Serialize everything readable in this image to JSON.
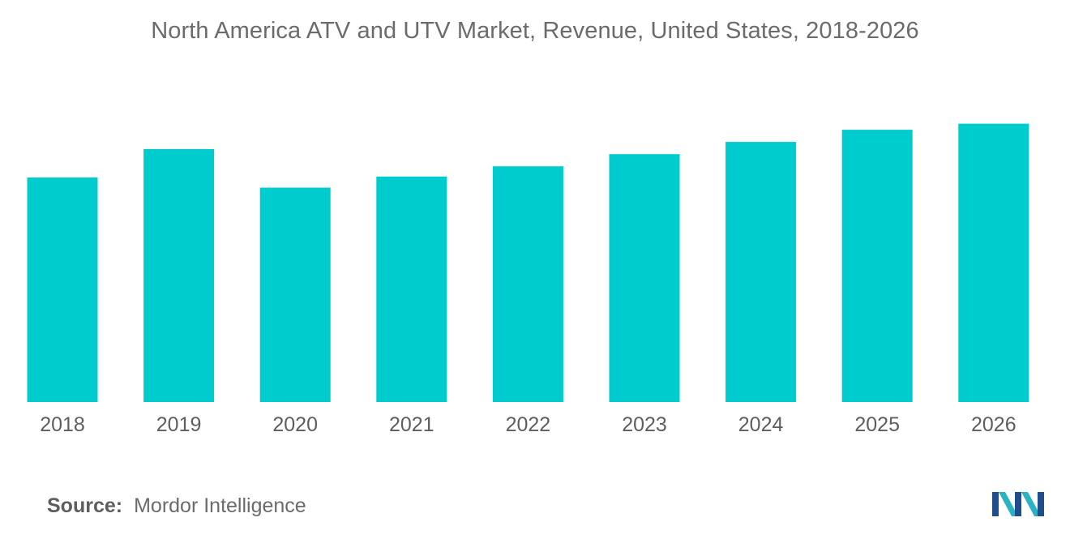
{
  "chart_data": {
    "type": "bar",
    "title": "North America ATV and UTV Market, Revenue, United States, 2018-2026",
    "xlabel": "",
    "ylabel": "",
    "categories": [
      "2018",
      "2019",
      "2020",
      "2021",
      "2022",
      "2023",
      "2024",
      "2025",
      "2026"
    ],
    "values": [
      221,
      249,
      211,
      222,
      232,
      244,
      256,
      268,
      274
    ],
    "ylim": [
      0,
      300
    ],
    "grid": false,
    "bar_color": "#00cccd"
  },
  "source": {
    "label": "Source:",
    "text": "Mordor Intelligence"
  },
  "logo": {
    "icon": "mordor-intelligence-logo-icon",
    "colors": [
      "#1e4f8c",
      "#2bb3c4"
    ]
  }
}
